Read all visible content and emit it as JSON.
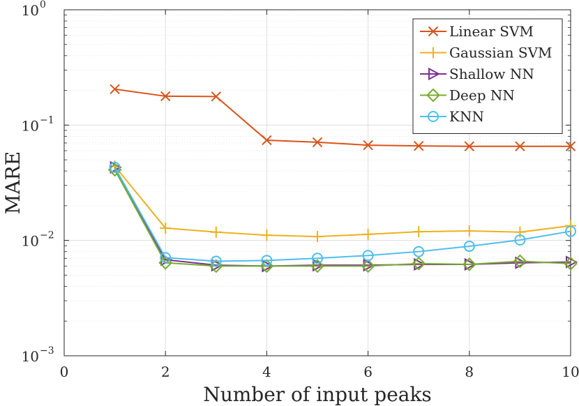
{
  "chart_data": {
    "type": "line",
    "yscale": "log",
    "xlabel": "Number of input peaks",
    "ylabel": "MARE",
    "xlim": [
      0,
      10
    ],
    "ylim": [
      0.001,
      1
    ],
    "grid": true,
    "legend_position": "top-right",
    "x_ticks": [
      {
        "value": 0,
        "label": "0"
      },
      {
        "value": 2,
        "label": "2"
      },
      {
        "value": 4,
        "label": "4"
      },
      {
        "value": 6,
        "label": "6"
      },
      {
        "value": 8,
        "label": "8"
      },
      {
        "value": 10,
        "label": "10"
      }
    ],
    "y_ticks": [
      {
        "value": 0.001,
        "base": "10",
        "exponent": "−3"
      },
      {
        "value": 0.01,
        "base": "10",
        "exponent": "−2"
      },
      {
        "value": 0.1,
        "base": "10",
        "exponent": "−1"
      },
      {
        "value": 1,
        "base": "10",
        "exponent": "0"
      }
    ],
    "x": [
      1,
      2,
      3,
      4,
      5,
      6,
      7,
      8,
      9,
      10
    ],
    "series": [
      {
        "name": "Linear SVM",
        "marker": "x",
        "color": "#D95319",
        "values": [
          0.205,
          0.178,
          0.177,
          0.074,
          0.071,
          0.067,
          0.066,
          0.0655,
          0.0655,
          0.0655
        ]
      },
      {
        "name": "Gaussian SVM",
        "marker": "plus",
        "color": "#EDB120",
        "values": [
          0.044,
          0.0128,
          0.0118,
          0.0111,
          0.0108,
          0.0113,
          0.0119,
          0.0121,
          0.0118,
          0.0134
        ]
      },
      {
        "name": "Shallow NN",
        "marker": "triangle-right",
        "color": "#7E2F8E",
        "values": [
          0.043,
          0.0068,
          0.0061,
          0.006,
          0.0061,
          0.0061,
          0.0062,
          0.0062,
          0.0064,
          0.0065
        ]
      },
      {
        "name": "Deep NN",
        "marker": "diamond",
        "color": "#77AC30",
        "values": [
          0.041,
          0.0064,
          0.006,
          0.006,
          0.006,
          0.006,
          0.0063,
          0.0062,
          0.0066,
          0.0063
        ]
      },
      {
        "name": "KNN",
        "marker": "circle",
        "color": "#4DBEEE",
        "values": [
          0.043,
          0.0071,
          0.0066,
          0.0067,
          0.007,
          0.0074,
          0.008,
          0.0089,
          0.0101,
          0.012
        ]
      }
    ]
  }
}
